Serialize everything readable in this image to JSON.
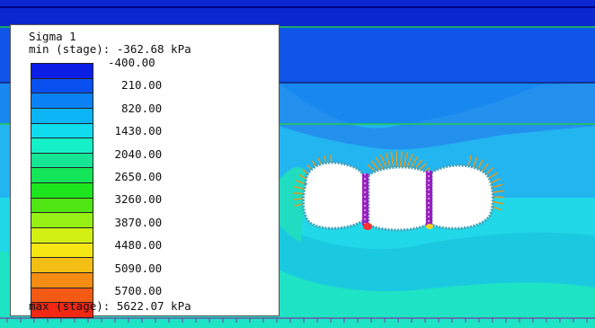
{
  "legend": {
    "title": "Sigma 1",
    "min_label": "min (stage): -362.68 kPa",
    "max_label": "max (stage): 5622.07 kPa",
    "ticks": [
      "-400.00",
      "210.00",
      "820.00",
      "1430.00",
      "2040.00",
      "2650.00",
      "3260.00",
      "3870.00",
      "4480.00",
      "5090.00",
      "5700.00"
    ],
    "colors": [
      "#0a1ee6",
      "#0a50f0",
      "#0a82f5",
      "#0ab4f5",
      "#10dcf0",
      "#14f0c8",
      "#14e696",
      "#14e65a",
      "#1ee61e",
      "#50e614",
      "#96f014",
      "#d2f014",
      "#f5e614",
      "#f5be14",
      "#f58c14",
      "#f55a14",
      "#f02814"
    ]
  },
  "model": {
    "panel_colors": {
      "navy": "#0a28d0",
      "blue": "#0f55e8",
      "mid": "#1688f0",
      "light": "#22b5f0",
      "cyan": "#20d8e8",
      "aqua": "#1ee3c4",
      "green": "#2ee08c",
      "hot": "#ff3030"
    },
    "opening_count": 3,
    "bolt_color": "#d99a2b",
    "support_color": "#9b20c0",
    "lining_color": "#4aa0b4"
  }
}
